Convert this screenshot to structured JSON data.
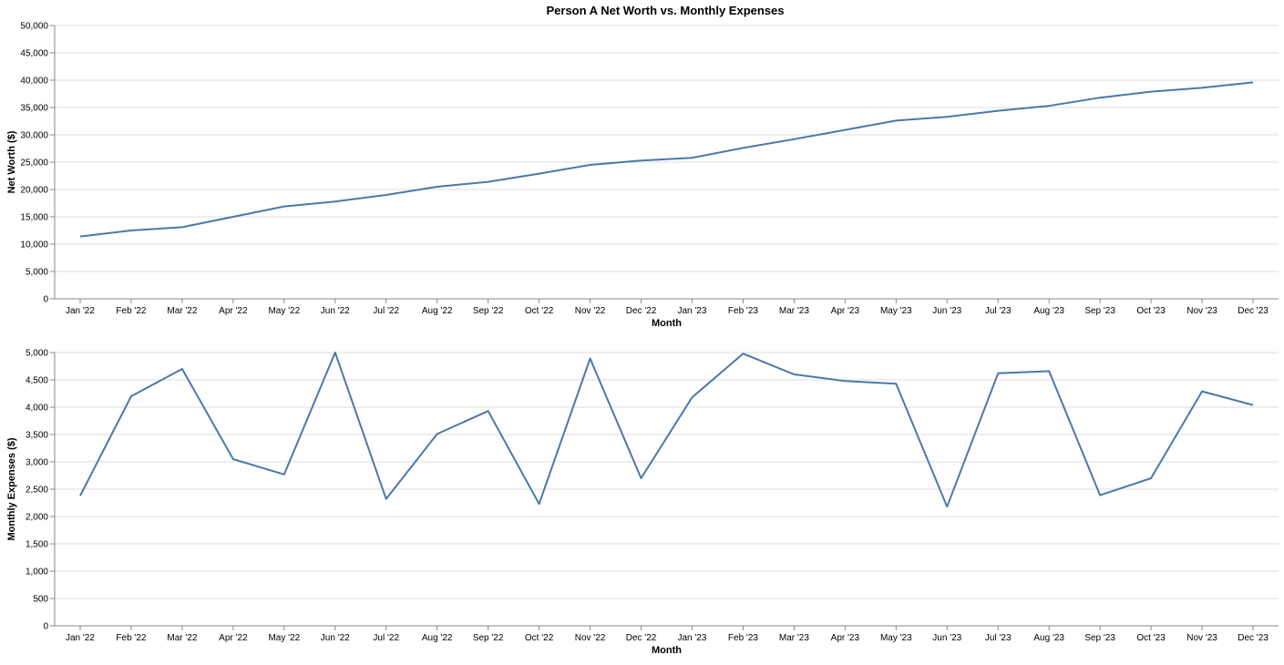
{
  "title": "Person A Net Worth vs. Monthly Expenses",
  "colors": {
    "line": "#4c78a8",
    "grid": "#dddddd",
    "axis": "#888888",
    "text": "#000000"
  },
  "chart_data": [
    {
      "type": "line",
      "xlabel": "Month",
      "ylabel": "Net Worth ($)",
      "ylim": [
        0,
        50000
      ],
      "yticks": [
        0,
        5000,
        10000,
        15000,
        20000,
        25000,
        30000,
        35000,
        40000,
        45000,
        50000
      ],
      "ytick_labels": [
        "0",
        "5,000",
        "10,000",
        "15,000",
        "20,000",
        "25,000",
        "30,000",
        "35,000",
        "40,000",
        "45,000",
        "50,000"
      ],
      "grid": true,
      "categories": [
        "Jan '22",
        "Feb '22",
        "Mar '22",
        "Apr '22",
        "May '22",
        "Jun '22",
        "Jul '22",
        "Aug '22",
        "Sep '22",
        "Oct '22",
        "Nov '22",
        "Dec '22",
        "Jan '23",
        "Feb '23",
        "Mar '23",
        "Apr '23",
        "May '23",
        "Jun '23",
        "Jul '23",
        "Aug '23",
        "Sep '23",
        "Oct '23",
        "Nov '23",
        "Dec '23"
      ],
      "values": [
        11400,
        12500,
        13100,
        15000,
        16900,
        17800,
        19000,
        20500,
        21400,
        22900,
        24500,
        25300,
        25800,
        27600,
        29200,
        30900,
        32600,
        33300,
        34400,
        35300,
        36800,
        37900,
        38600,
        39600
      ]
    },
    {
      "type": "line",
      "xlabel": "Month",
      "ylabel": "Monthly Expenses ($)",
      "ylim": [
        0,
        5000
      ],
      "yticks": [
        0,
        500,
        1000,
        1500,
        2000,
        2500,
        3000,
        3500,
        4000,
        4500,
        5000
      ],
      "ytick_labels": [
        "0",
        "500",
        "1,000",
        "1,500",
        "2,000",
        "2,500",
        "3,000",
        "3,500",
        "4,000",
        "4,500",
        "5,000"
      ],
      "grid": true,
      "categories": [
        "Jan '22",
        "Feb '22",
        "Mar '22",
        "Apr '22",
        "May '22",
        "Jun '22",
        "Jul '22",
        "Aug '22",
        "Sep '22",
        "Oct '22",
        "Nov '22",
        "Dec '22",
        "Jan '23",
        "Feb '23",
        "Mar '23",
        "Apr '23",
        "May '23",
        "Jun '23",
        "Jul '23",
        "Aug '23",
        "Sep '23",
        "Oct '23",
        "Nov '23",
        "Dec '23"
      ],
      "values": [
        2380,
        4200,
        4700,
        3050,
        2770,
        5000,
        2320,
        3510,
        3930,
        2230,
        4890,
        2700,
        4180,
        4980,
        4600,
        4480,
        4430,
        2180,
        4620,
        4660,
        2390,
        2700,
        4290,
        4040
      ]
    }
  ]
}
